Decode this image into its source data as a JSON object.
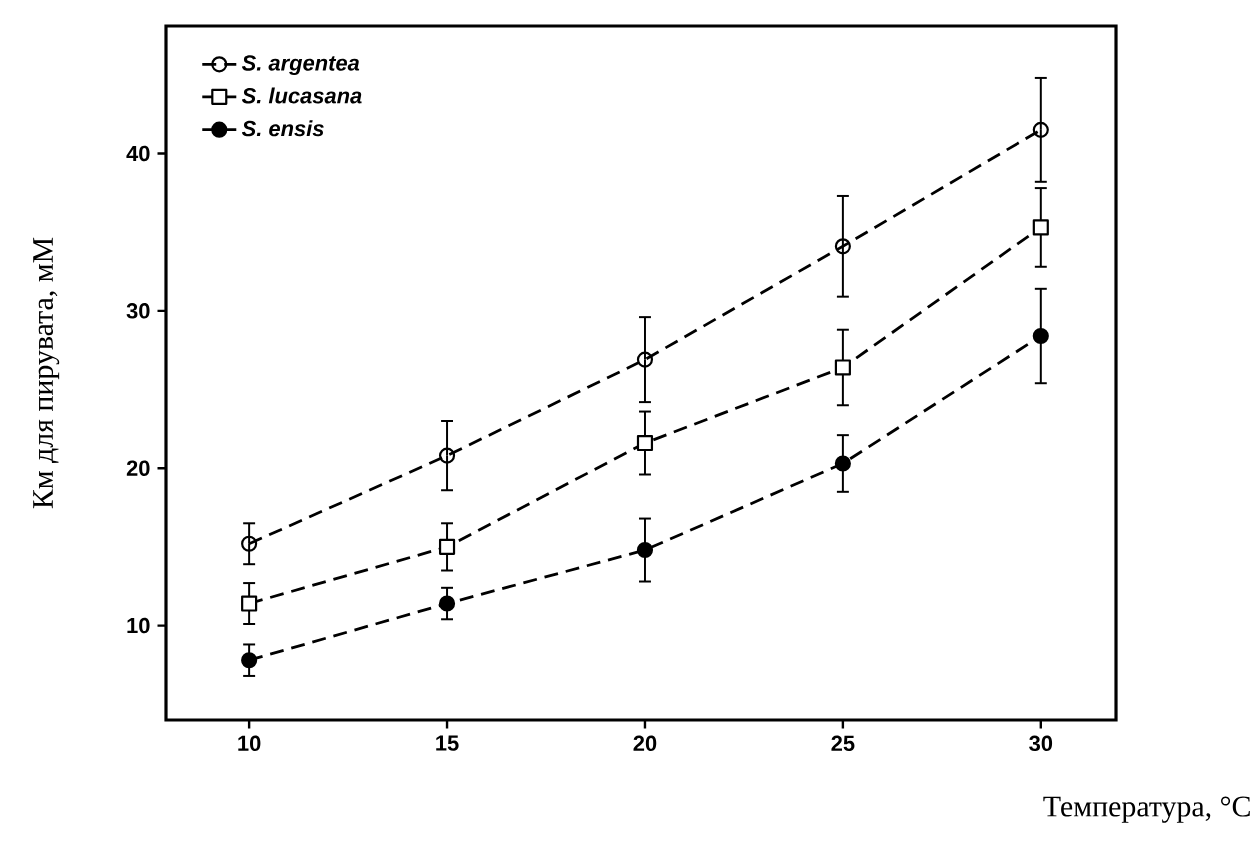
{
  "chart_data": {
    "type": "line",
    "xlabel": "Температура, °C",
    "ylabel": "Км для пирувата, мМ",
    "x": [
      10,
      15,
      20,
      25,
      30
    ],
    "series": [
      {
        "name": "S. argentea",
        "color": "#000000",
        "marker": "circle",
        "values": [
          15.2,
          20.8,
          26.9,
          34.1,
          41.5
        ],
        "errors": [
          1.3,
          2.2,
          2.7,
          3.2,
          3.3
        ]
      },
      {
        "name": "S. lucasana",
        "color": "#000000",
        "marker": "square",
        "values": [
          11.4,
          15,
          21.6,
          26.4,
          35.3
        ],
        "errors": [
          1.3,
          1.5,
          2,
          2.4,
          2.5
        ]
      },
      {
        "name": "S. ensis",
        "color": "#000000",
        "marker": "circle",
        "values": [
          7.8,
          11.4,
          14.8,
          20.3,
          28.4
        ],
        "errors": [
          1,
          1,
          2,
          1.8,
          3
        ]
      }
    ],
    "line_style": "dashed",
    "legend": "top left",
    "xlim": [
      7.9,
      31.9
    ],
    "ylim": [
      4,
      48.1
    ],
    "xticks": [
      10,
      15,
      20,
      25,
      30
    ],
    "yticks": [
      10,
      20,
      30,
      40
    ]
  }
}
